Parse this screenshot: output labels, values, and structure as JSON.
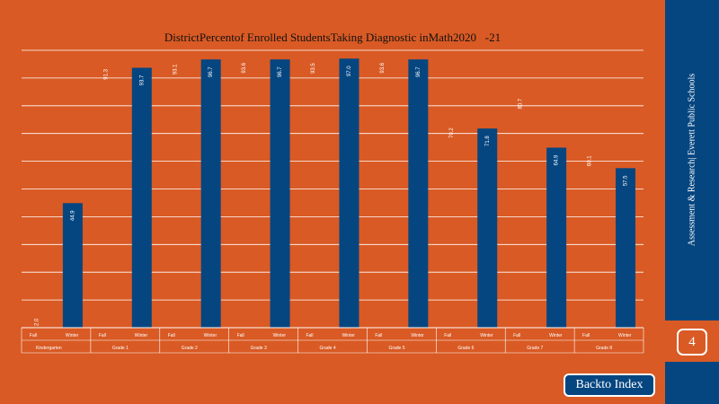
{
  "chart_data": {
    "type": "bar",
    "title": "DistrictPercentof Enrolled StudentsTaking Diagnostic inMath2020   -21",
    "grade_labels": [
      "Kindergarten",
      "Grade   1",
      "Grade   2",
      "Grade   3",
      "Grade   4",
      "Grade   5",
      "Grade   6",
      "Grade   7",
      "Grade   8"
    ],
    "term_labels": [
      "Fall",
      "Winter"
    ],
    "series": [
      {
        "values": [
          2.0,
          91.3,
          93.1,
          93.6,
          93.5,
          93.6,
          70.2,
          80.7,
          60.1
        ]
      },
      {
        "values": [
          44.9,
          93.7,
          96.7,
          96.7,
          97.0,
          96.7,
          71.8,
          64.9,
          57.5
        ]
      }
    ],
    "ylim": [
      0,
      100
    ],
    "grid": true,
    "colors": {
      "bar": "#064680",
      "background": "#D95A24",
      "gridline": "#FFFFFF"
    }
  },
  "sidebar": {
    "label": "Assessment  & Research|  Everett  Public Schools",
    "page_number": "4"
  },
  "navigation": {
    "back_label": "Backto  Index"
  }
}
